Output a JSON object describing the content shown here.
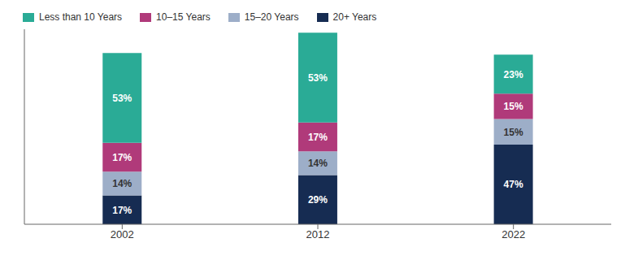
{
  "chart_data": {
    "type": "bar",
    "stacked": true,
    "categories": [
      "2002",
      "2012",
      "2022"
    ],
    "series": [
      {
        "name": "20+ Years",
        "color": "#162c52",
        "values": [
          17,
          29,
          47
        ],
        "value_labels": [
          "17%",
          "29%",
          "47%"
        ]
      },
      {
        "name": "15–20 Years",
        "color": "#9daec8",
        "values": [
          14,
          14,
          15
        ],
        "value_labels": [
          "14%",
          "14%",
          "15%"
        ]
      },
      {
        "name": "10–15 Years",
        "color": "#b03a7a",
        "values": [
          17,
          17,
          15
        ],
        "value_labels": [
          "17%",
          "17%",
          "15%"
        ]
      },
      {
        "name": "Less than 10 Years",
        "color": "#2aab96",
        "values": [
          53,
          53,
          23
        ],
        "value_labels": [
          "53%",
          "53%",
          "23%"
        ]
      }
    ],
    "ylim": [
      0,
      115
    ],
    "data_labels": true,
    "tick_labels": "x",
    "legend": "upper left",
    "grid": false
  }
}
